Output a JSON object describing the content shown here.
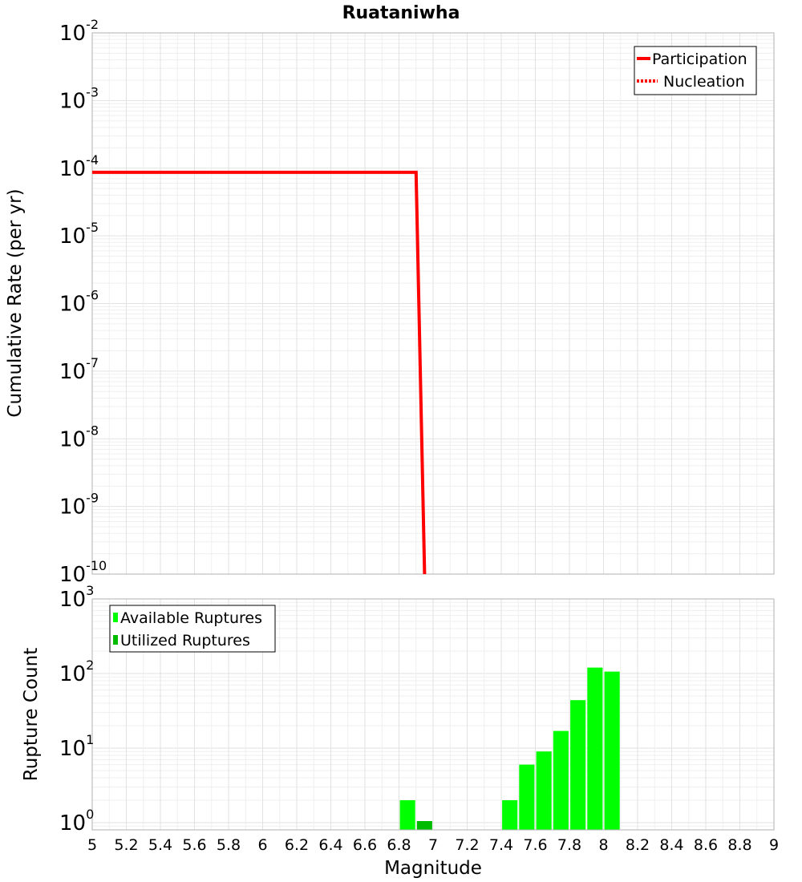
{
  "chart_data": [
    {
      "type": "line",
      "title": "Ruataniwha",
      "xlabel": "Magnitude",
      "ylabel": "Cumulative Rate (per yr)",
      "yscale": "log",
      "xlim": [
        5,
        9
      ],
      "ylim": [
        1e-10,
        0.01
      ],
      "y_ticks": [
        {
          "base": "10",
          "exp": "-10",
          "value": 1e-10
        },
        {
          "base": "10",
          "exp": "-9",
          "value": 1e-09
        },
        {
          "base": "10",
          "exp": "-8",
          "value": 1e-08
        },
        {
          "base": "10",
          "exp": "-7",
          "value": 1e-07
        },
        {
          "base": "10",
          "exp": "-6",
          "value": 1e-06
        },
        {
          "base": "10",
          "exp": "-5",
          "value": 1e-05
        },
        {
          "base": "10",
          "exp": "-4",
          "value": 0.0001
        },
        {
          "base": "10",
          "exp": "-3",
          "value": 0.001
        },
        {
          "base": "10",
          "exp": "-2",
          "value": 0.01
        }
      ],
      "grid": true,
      "legend_position": "top-right",
      "series": [
        {
          "name": "Participation",
          "color": "#ff0000",
          "style": "solid",
          "x": [
            5.0,
            6.9,
            6.95
          ],
          "y": [
            8.7e-05,
            8.7e-05,
            1e-10
          ]
        },
        {
          "name": "Nucleation",
          "color": "#ff0000",
          "style": "dotted",
          "x": [
            5.0,
            6.9,
            6.95
          ],
          "y": [
            8.7e-05,
            8.7e-05,
            1e-10
          ]
        }
      ]
    },
    {
      "type": "bar",
      "xlabel": "Magnitude",
      "ylabel": "Rupture Count",
      "yscale": "log",
      "xlim": [
        5,
        9
      ],
      "ylim": [
        0.8,
        1000
      ],
      "y_ticks": [
        {
          "base": "10",
          "exp": "0",
          "value": 1
        },
        {
          "base": "10",
          "exp": "1",
          "value": 10
        },
        {
          "base": "10",
          "exp": "2",
          "value": 100
        },
        {
          "base": "10",
          "exp": "3",
          "value": 1000
        }
      ],
      "x_ticks": [
        "5",
        "5.2",
        "5.4",
        "5.6",
        "5.8",
        "6",
        "6.2",
        "6.4",
        "6.6",
        "6.8",
        "7",
        "7.2",
        "7.4",
        "7.6",
        "7.8",
        "8",
        "8.2",
        "8.4",
        "8.6",
        "8.8",
        "9"
      ],
      "grid": true,
      "legend_position": "top-left",
      "bar_width": 0.09,
      "series": [
        {
          "name": "Available Ruptures",
          "color": "#00ff00",
          "x": [
            6.85,
            7.45,
            7.55,
            7.65,
            7.75,
            7.85,
            7.95,
            8.05
          ],
          "values": [
            2,
            2,
            6,
            9,
            17,
            44,
            120,
            106
          ]
        },
        {
          "name": "Utilized Ruptures",
          "color": "#00bb00",
          "x": [
            6.95
          ],
          "values": [
            1.05
          ]
        }
      ]
    }
  ]
}
